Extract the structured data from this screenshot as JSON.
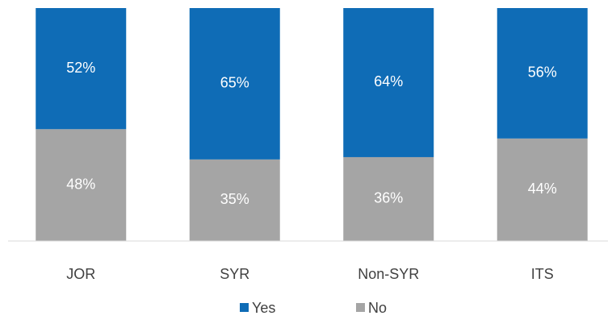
{
  "chart_data": {
    "type": "stacked_bar",
    "categories": [
      "JOR",
      "SYR",
      "Non-SYR",
      "ITS"
    ],
    "series": [
      {
        "name": "Yes",
        "color": "#0f6cb6",
        "values": [
          52,
          65,
          64,
          56
        ],
        "value_labels": [
          "52%",
          "65%",
          "64%",
          "56%"
        ]
      },
      {
        "name": "No",
        "color": "#a5a5a5",
        "values": [
          48,
          35,
          36,
          44
        ],
        "value_labels": [
          "48%",
          "35%",
          "36%",
          "44%"
        ]
      }
    ],
    "ylim": [
      0,
      100
    ],
    "legend": "bottom"
  }
}
